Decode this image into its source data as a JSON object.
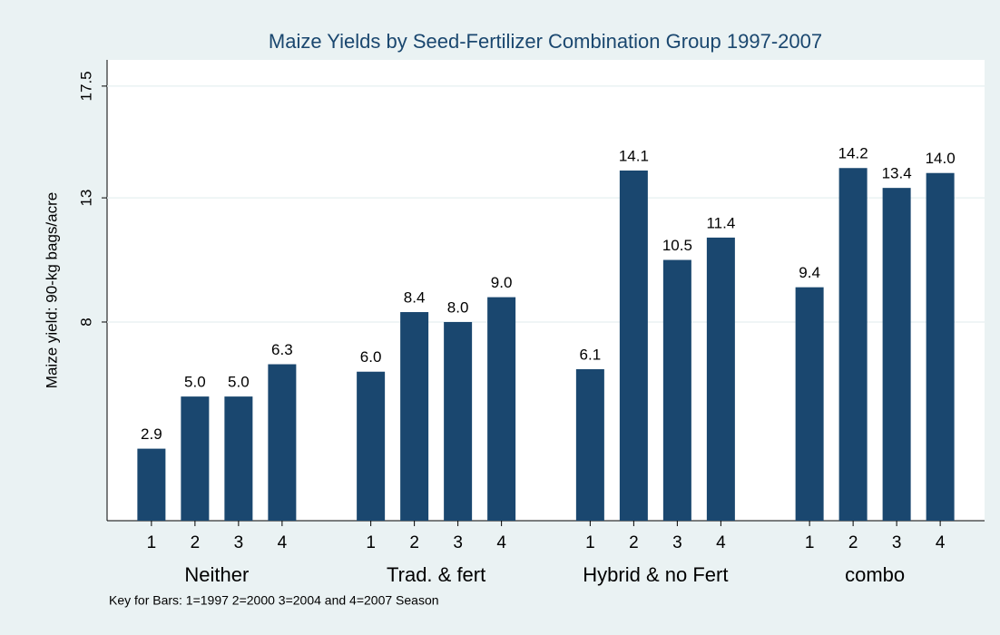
{
  "chart_data": {
    "type": "bar",
    "title": "Maize Yields by Seed-Fertilizer Combination Group 1997-2007",
    "y_label": "Maize yield: 90-kg bags/acre",
    "note": "Key for Bars: 1=1997 2=2000 3=2004 and 4=2007 Season",
    "categories": [
      "Neither",
      "Trad. & fert",
      "Hybrid & no Fert",
      "combo"
    ],
    "color": "#1a476f",
    "series": [
      {
        "name": "1",
        "values": [
          2.9,
          6.0,
          6.1,
          9.4
        ],
        "value_labels": [
          "2.9",
          "6.0",
          "6.1",
          "9.4"
        ]
      },
      {
        "name": "2",
        "values": [
          5.0,
          8.4,
          14.1,
          14.2
        ],
        "value_labels": [
          "5.0",
          "8.4",
          "14.1",
          "14.2"
        ]
      },
      {
        "name": "3",
        "values": [
          5.0,
          8.0,
          10.5,
          13.4
        ],
        "value_labels": [
          "5.0",
          "8.0",
          "10.5",
          "13.4"
        ]
      },
      {
        "name": "4",
        "values": [
          6.3,
          9.0,
          11.4,
          14.0
        ],
        "value_labels": [
          "6.3",
          "9.0",
          "11.4",
          "14.0"
        ]
      }
    ],
    "ylim": [
      0,
      18.3
    ],
    "yticks": [
      8,
      13,
      17.5
    ],
    "grid": true
  }
}
